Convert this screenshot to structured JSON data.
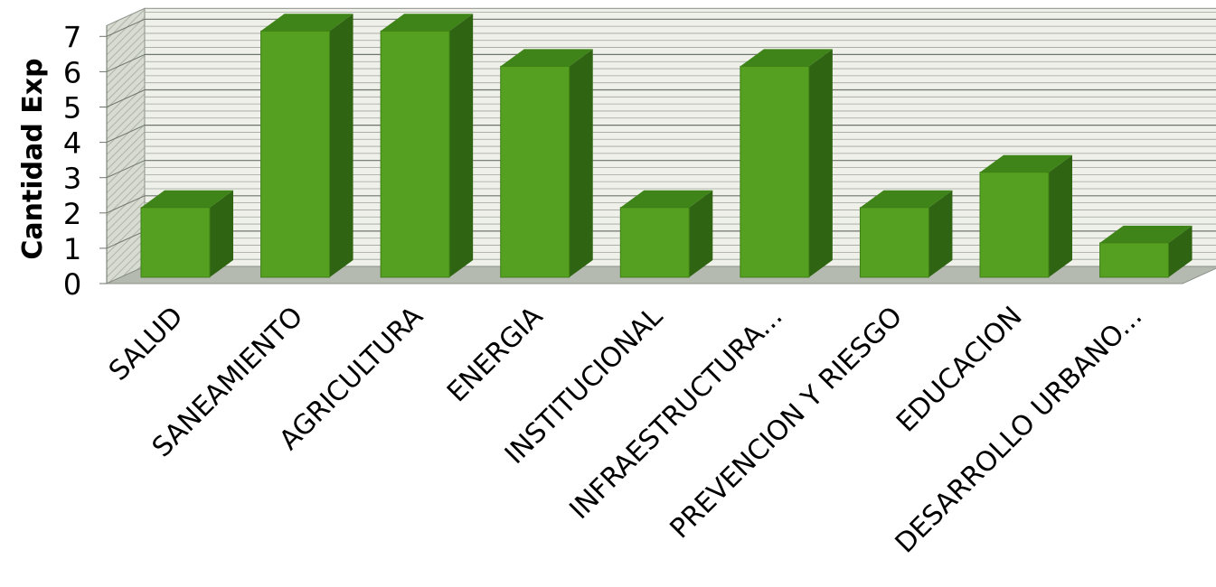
{
  "chart_data": {
    "type": "bar",
    "style": "3d-column",
    "categories": [
      "SALUD",
      "SANEAMIENTO",
      "AGRICULTURA",
      "ENERGIA",
      "INSTITUCIONAL",
      "INFRAESTRUCTURA...",
      "PREVENCION Y RIESGO",
      "EDUCACION",
      "DESARROLLO URBANO..."
    ],
    "values": [
      2,
      7,
      7,
      6,
      2,
      6,
      2,
      3,
      1
    ],
    "title": "",
    "xlabel": "",
    "ylabel": "Cantidad Exp",
    "ylim": [
      0,
      7
    ],
    "yticks": [
      0,
      1,
      2,
      3,
      4,
      5,
      6,
      7
    ],
    "grid": true,
    "legend": "none"
  },
  "colors": {
    "bar_front": "#55A021",
    "bar_top": "#3F8419",
    "bar_side": "#2F6512",
    "floor": "#B5BAB1",
    "back_wall": "#EEF0E9",
    "side_wall": "#D7DBD2",
    "gridline": "#9EA59A"
  }
}
